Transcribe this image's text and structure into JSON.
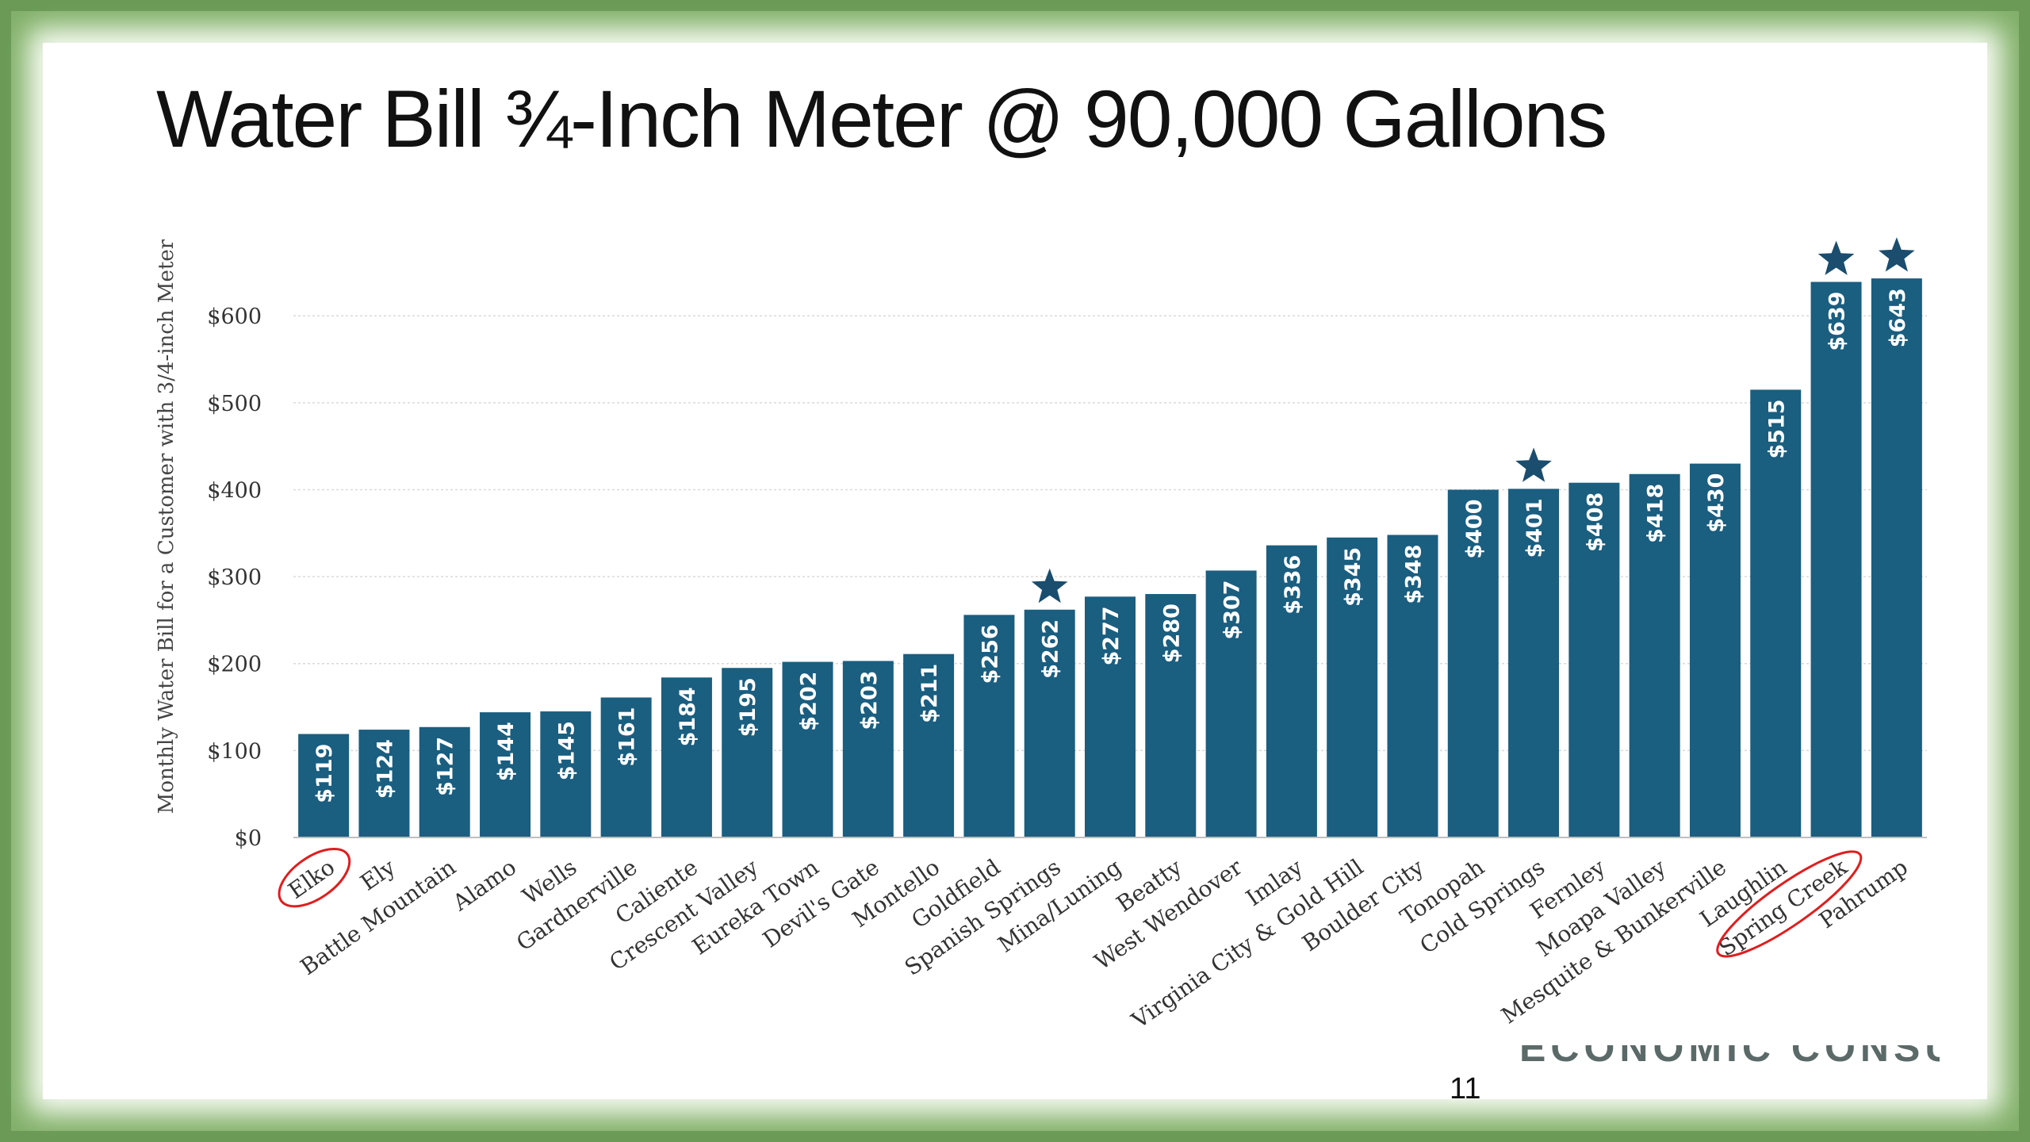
{
  "slide": {
    "title": "Water Bill ¾-Inch Meter @ 90,000 Gallons",
    "page_number": "11",
    "footer_logo": "ECONOMIC CONSULTING"
  },
  "colors": {
    "bar": "#1a5e80",
    "star": "#1a4d6e",
    "highlight_circle": "#e11d1d",
    "gridline": "#d9d9d9",
    "frame": "#6a9a56"
  },
  "icons": {
    "marker": "star-icon",
    "highlight": "red-circle-highlight"
  },
  "chart_data": {
    "type": "bar",
    "ylabel": "Monthly Water Bill for a Customer with 3/4-inch Meter",
    "ylim": [
      0,
      650
    ],
    "yticks": [
      0,
      100,
      200,
      300,
      400,
      500,
      600
    ],
    "ytick_labels": [
      "$0",
      "$100",
      "$200",
      "$300",
      "$400",
      "$500",
      "$600"
    ],
    "grid": true,
    "categories": [
      "Elko",
      "Ely",
      "Battle Mountain",
      "Alamo",
      "Wells",
      "Gardnerville",
      "Caliente",
      "Crescent Valley",
      "Eureka Town",
      "Devil's Gate",
      "Montello",
      "Goldfield",
      "Spanish Springs",
      "Mina/Luning",
      "Beatty",
      "West Wendover",
      "Imlay",
      "Virginia City & Gold Hill",
      "Boulder City",
      "Tonopah",
      "Cold Springs",
      "Fernley",
      "Moapa Valley",
      "Mesquite & Bunkerville",
      "Laughlin",
      "Spring Creek",
      "Pahrump"
    ],
    "values": [
      119,
      124,
      127,
      144,
      145,
      161,
      184,
      195,
      202,
      203,
      211,
      256,
      262,
      277,
      280,
      307,
      336,
      345,
      348,
      400,
      401,
      408,
      418,
      430,
      515,
      639,
      643
    ],
    "data_labels": [
      "$119",
      "$124",
      "$127",
      "$144",
      "$145",
      "$161",
      "$184",
      "$195",
      "$202",
      "$203",
      "$211",
      "$256",
      "$262",
      "$277",
      "$280",
      "$307",
      "$336",
      "$345",
      "$348",
      "$400",
      "$401",
      "$408",
      "$418",
      "$430",
      "",
      "$639",
      "$643"
    ],
    "label_515": "$515",
    "starred": [
      "Spanish Springs",
      "Cold Springs",
      "Spring Creek",
      "Pahrump"
    ],
    "circled": [
      "Elko",
      "Spring Creek"
    ]
  }
}
